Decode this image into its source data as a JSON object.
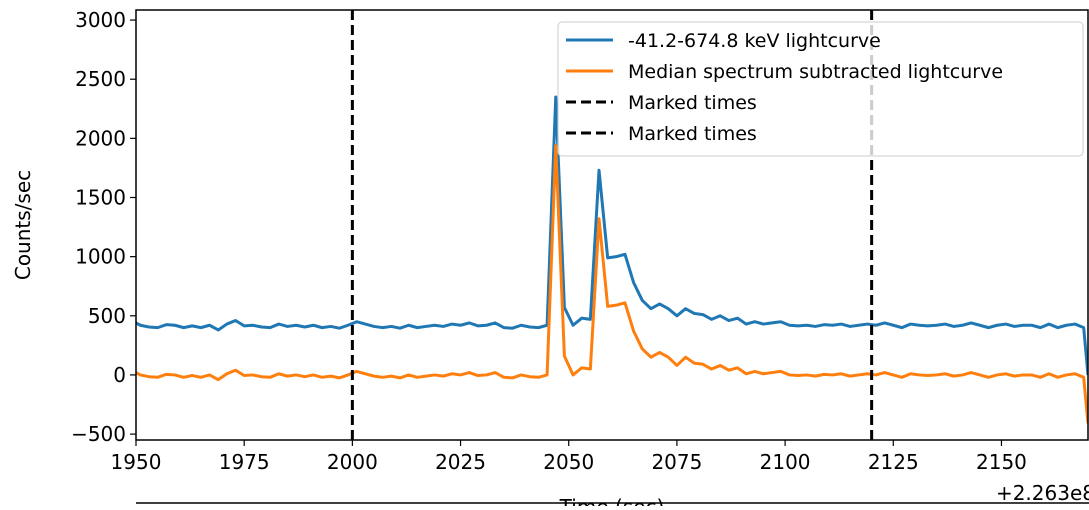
{
  "chart_data": {
    "type": "line",
    "xlabel": "Time (sec)",
    "ylabel": "Counts/sec",
    "label_color": "#ff0000",
    "x_offset_label": "+2.263e8",
    "x": [
      1950,
      1951,
      1953,
      1955,
      1957,
      1959,
      1961,
      1963,
      1965,
      1967,
      1969,
      1971,
      1973,
      1975,
      1977,
      1979,
      1981,
      1983,
      1985,
      1987,
      1989,
      1991,
      1993,
      1995,
      1997,
      1999,
      2001,
      2003,
      2005,
      2007,
      2009,
      2011,
      2013,
      2015,
      2017,
      2019,
      2021,
      2023,
      2025,
      2027,
      2029,
      2031,
      2033,
      2035,
      2037,
      2039,
      2041,
      2043,
      2045,
      2047,
      2049,
      2051,
      2053,
      2055,
      2057,
      2059,
      2061,
      2063,
      2065,
      2067,
      2069,
      2071,
      2073,
      2075,
      2077,
      2079,
      2081,
      2083,
      2085,
      2087,
      2089,
      2091,
      2093,
      2095,
      2097,
      2099,
      2101,
      2103,
      2105,
      2107,
      2109,
      2111,
      2113,
      2115,
      2117,
      2119,
      2121,
      2123,
      2125,
      2127,
      2129,
      2131,
      2133,
      2135,
      2137,
      2139,
      2141,
      2143,
      2145,
      2147,
      2149,
      2151,
      2153,
      2155,
      2157,
      2159,
      2161,
      2163,
      2165,
      2167,
      2169,
      2170
    ],
    "series": [
      {
        "name": "-41.2-674.8 keV lightcurve",
        "color": "#1f77b4",
        "values": [
          440,
          420,
          405,
          400,
          425,
          420,
          400,
          415,
          400,
          420,
          380,
          430,
          460,
          415,
          420,
          405,
          400,
          430,
          410,
          420,
          405,
          420,
          400,
          410,
          395,
          420,
          450,
          430,
          410,
          400,
          410,
          395,
          420,
          400,
          410,
          420,
          410,
          430,
          420,
          440,
          415,
          420,
          440,
          400,
          395,
          420,
          405,
          400,
          420,
          2350,
          570,
          420,
          480,
          470,
          1730,
          990,
          1000,
          1020,
          780,
          630,
          560,
          600,
          560,
          500,
          560,
          520,
          510,
          470,
          500,
          460,
          480,
          430,
          450,
          430,
          440,
          450,
          420,
          415,
          420,
          410,
          425,
          420,
          430,
          410,
          420,
          430,
          420,
          440,
          420,
          400,
          430,
          420,
          415,
          420,
          430,
          410,
          420,
          440,
          420,
          400,
          420,
          430,
          410,
          420,
          420,
          400,
          430,
          400,
          420,
          430,
          400,
          0
        ]
      },
      {
        "name": "Median spectrum subtracted lightcurve",
        "color": "#ff7f0e",
        "values": [
          20,
          0,
          -15,
          -20,
          5,
          0,
          -20,
          -5,
          -20,
          0,
          -40,
          10,
          40,
          -5,
          0,
          -15,
          -20,
          10,
          -10,
          0,
          -15,
          0,
          -20,
          -10,
          -25,
          0,
          30,
          10,
          -10,
          -20,
          -10,
          -25,
          0,
          -20,
          -10,
          0,
          -10,
          10,
          0,
          20,
          -5,
          0,
          20,
          -20,
          -25,
          0,
          -15,
          -20,
          0,
          1940,
          160,
          0,
          60,
          50,
          1320,
          580,
          590,
          610,
          370,
          220,
          150,
          190,
          150,
          80,
          150,
          100,
          90,
          50,
          80,
          40,
          60,
          10,
          30,
          10,
          20,
          30,
          0,
          -5,
          0,
          -10,
          5,
          0,
          10,
          -10,
          0,
          10,
          0,
          20,
          0,
          -20,
          10,
          0,
          -5,
          0,
          10,
          -10,
          0,
          20,
          0,
          -20,
          0,
          10,
          -10,
          0,
          0,
          -20,
          10,
          -20,
          0,
          10,
          -20,
          -410
        ]
      }
    ],
    "markers": [
      {
        "name": "Marked times",
        "x": 2000,
        "color": "#000000"
      },
      {
        "name": "Marked times",
        "x": 2120,
        "color": "#000000"
      }
    ],
    "xlim": [
      1950,
      2170
    ],
    "ylim": [
      -550,
      3085
    ],
    "xticks": [
      1950,
      1975,
      2000,
      2025,
      2050,
      2075,
      2100,
      2125,
      2150
    ],
    "yticks": [
      {
        "value": -500,
        "label": "−500"
      },
      0,
      500,
      1000,
      1500,
      2000,
      2500,
      3000
    ],
    "legend": "upper right"
  }
}
